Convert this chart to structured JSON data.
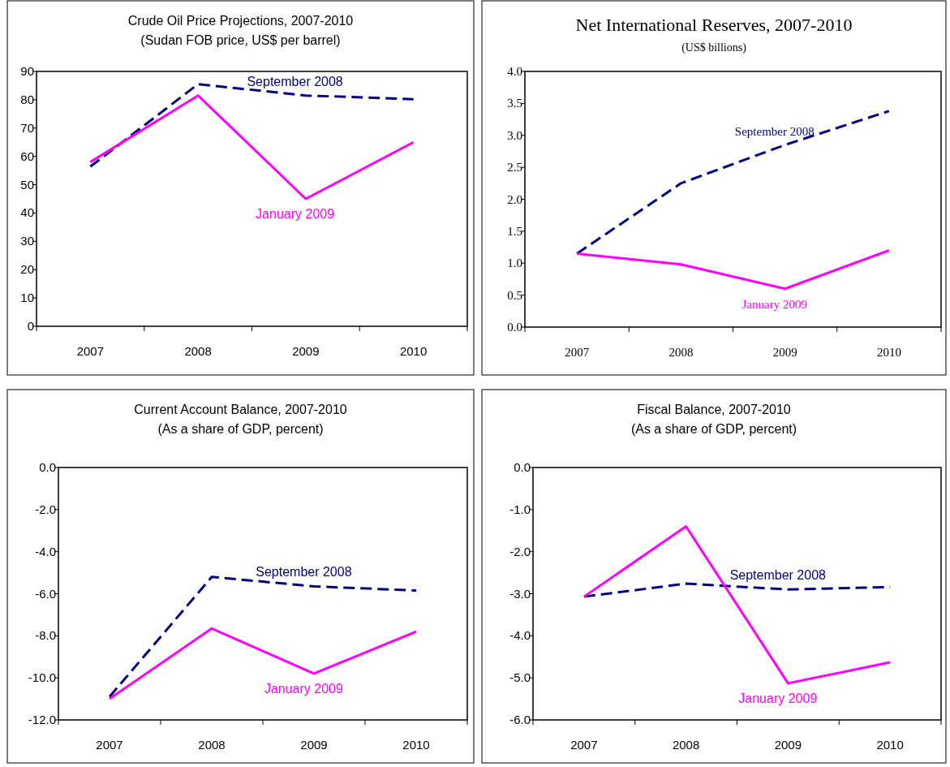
{
  "chart_data": [
    {
      "type": "line",
      "title": "Crude Oil Price Projections, 2007-2010",
      "subtitle": "(Sudan FOB price, US$ per barrel)",
      "categories": [
        "2007",
        "2008",
        "2009",
        "2010"
      ],
      "ylim": [
        0,
        90
      ],
      "yticks": [
        0,
        10,
        20,
        30,
        40,
        50,
        60,
        70,
        80,
        90
      ],
      "series": [
        {
          "name": "September 2008",
          "color": "#000080",
          "line_style": "dashed",
          "values": [
            56.4,
            85.5,
            81.5,
            80.2
          ]
        },
        {
          "name": "January 2009",
          "color": "#ff00ff",
          "line_style": "solid",
          "values": [
            58,
            81.5,
            45,
            65
          ]
        }
      ]
    },
    {
      "type": "line",
      "title": "Net International Reserves, 2007-2010",
      "subtitle": "(US$ billions)",
      "categories": [
        "2007",
        "2008",
        "2009",
        "2010"
      ],
      "ylim": [
        0,
        4
      ],
      "yticks": [
        {
          "value": 0,
          "label": "0.0"
        },
        {
          "value": 0.5,
          "label": "0.5"
        },
        {
          "value": 1,
          "label": "1.0"
        },
        {
          "value": 1.5,
          "label": "1.5"
        },
        {
          "value": 2,
          "label": "2.0"
        },
        {
          "value": 2.5,
          "label": "2.5"
        },
        {
          "value": 3,
          "label": "3.0"
        },
        {
          "value": 3.5,
          "label": "3.5"
        },
        {
          "value": 4,
          "label": "4.0"
        }
      ],
      "series": [
        {
          "name": "September 2008",
          "color": "#000080",
          "line_style": "dashed",
          "values": [
            1.15,
            2.25,
            2.85,
            3.38
          ]
        },
        {
          "name": "January 2009",
          "color": "#ff00ff",
          "line_style": "solid",
          "values": [
            1.15,
            0.98,
            0.6,
            1.2
          ]
        }
      ]
    },
    {
      "type": "line",
      "title": "Current Account Balance, 2007-2010",
      "subtitle": "(As a share of GDP, percent)",
      "categories": [
        "2007",
        "2008",
        "2009",
        "2010"
      ],
      "ylim": [
        -12,
        0
      ],
      "yticks": [
        {
          "value": -12,
          "label": "-12.0"
        },
        {
          "value": -10,
          "label": "-10.0"
        },
        {
          "value": -8,
          "label": "-8.0"
        },
        {
          "value": -6,
          "label": "-6.0"
        },
        {
          "value": -4,
          "label": "-4.0"
        },
        {
          "value": -2,
          "label": "-2.0"
        },
        {
          "value": 0,
          "label": "0.0"
        }
      ],
      "series": [
        {
          "name": "September 2008",
          "color": "#000080",
          "line_style": "dashed",
          "values": [
            -10.9,
            -5.2,
            -5.65,
            -5.85
          ]
        },
        {
          "name": "January 2009",
          "color": "#ff00ff",
          "line_style": "solid",
          "values": [
            -11,
            -7.65,
            -9.8,
            -7.8
          ]
        }
      ]
    },
    {
      "type": "line",
      "title": "Fiscal Balance, 2007-2010",
      "subtitle": "(As a share of GDP, percent)",
      "categories": [
        "2007",
        "2008",
        "2009",
        "2010"
      ],
      "ylim": [
        -6,
        0
      ],
      "yticks": [
        {
          "value": -6,
          "label": "-6.0"
        },
        {
          "value": -5,
          "label": "-5.0"
        },
        {
          "value": -4,
          "label": "-4.0"
        },
        {
          "value": -3,
          "label": "-3.0"
        },
        {
          "value": -2,
          "label": "-2.0"
        },
        {
          "value": -1,
          "label": "-1.0"
        },
        {
          "value": 0,
          "label": "0.0"
        }
      ],
      "series": [
        {
          "name": "September 2008",
          "color": "#000080",
          "line_style": "dashed",
          "values": [
            -3.07,
            -2.76,
            -2.9,
            -2.84
          ]
        },
        {
          "name": "January 2009",
          "color": "#ff00ff",
          "line_style": "solid",
          "values": [
            -3.07,
            -1.4,
            -5.13,
            -4.63
          ]
        }
      ]
    }
  ]
}
